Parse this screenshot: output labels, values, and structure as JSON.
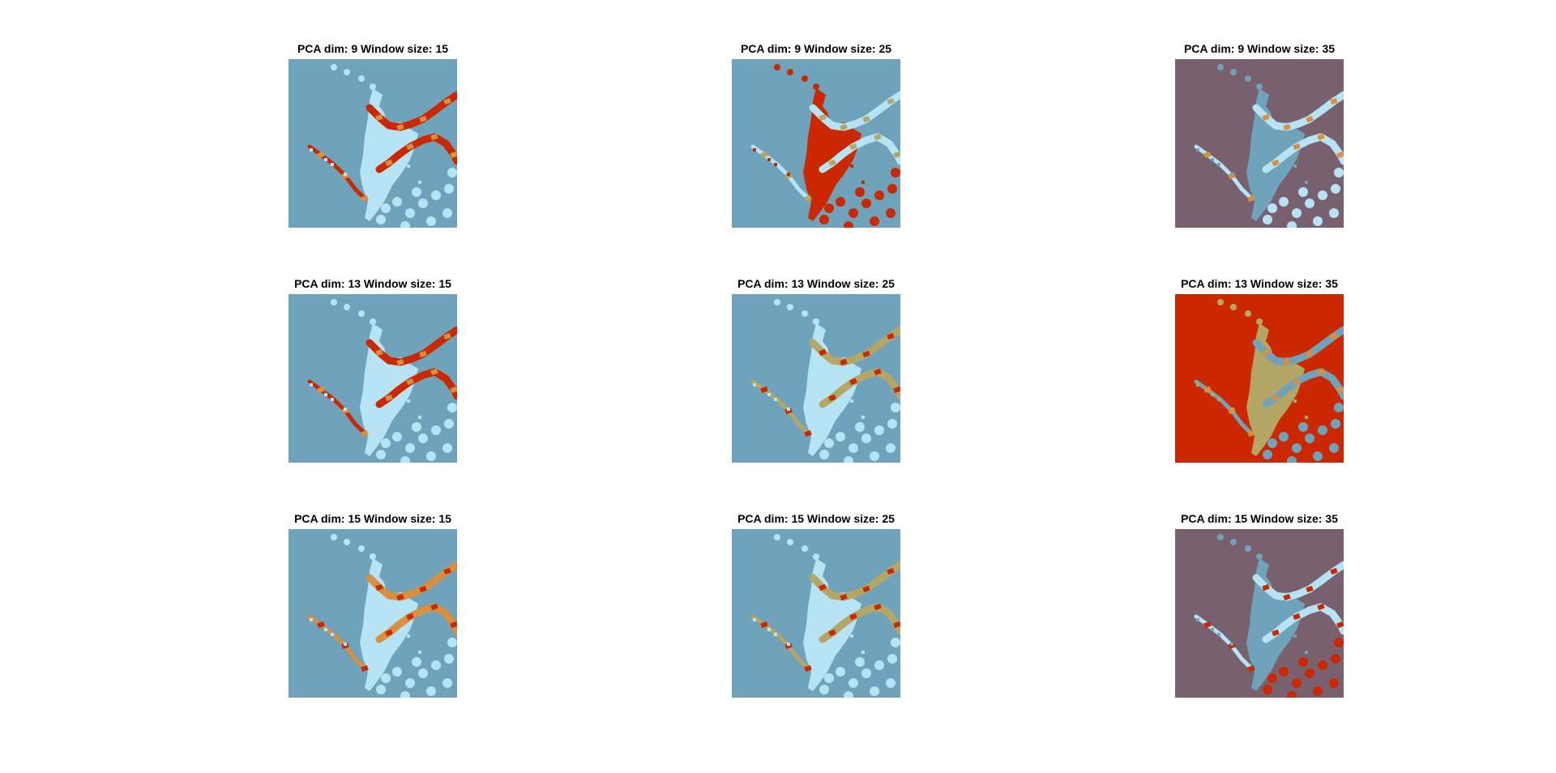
{
  "figure": {
    "background": "#ffffff"
  },
  "chart_data": {
    "type": "heatmap",
    "description": "3x3 grid of cluster-label maps (segmentation results)",
    "rows_param": "PCA dim",
    "cols_param": "Window size",
    "pca_dims": [
      9,
      13,
      15
    ],
    "window_sizes": [
      15,
      25,
      35
    ],
    "palette": {
      "steel_blue": "#6ea3bb",
      "light_blue": "#b6e4f5",
      "red": "#cb2800",
      "orange": "#d8903e",
      "khaki": "#b4a765",
      "mauve": "#79606f"
    },
    "panels": [
      {
        "title": "PCA dim: 9 Window size: 15",
        "pca_dim": 9,
        "window_size": 15,
        "background": "steel_blue",
        "body": "light_blue",
        "ridge": "red",
        "accent": "orange",
        "spots": "light_blue"
      },
      {
        "title": "PCA dim: 9 Window size: 25",
        "pca_dim": 9,
        "window_size": 25,
        "background": "steel_blue",
        "body": "red",
        "ridge": "light_blue",
        "accent": "khaki",
        "spots": "red"
      },
      {
        "title": "PCA dim: 9 Window size: 35",
        "pca_dim": 9,
        "window_size": 35,
        "background": "mauve",
        "body": "steel_blue",
        "ridge": "light_blue",
        "accent": "orange",
        "spots": "light_blue"
      },
      {
        "title": "PCA dim: 13 Window size: 15",
        "pca_dim": 13,
        "window_size": 15,
        "background": "steel_blue",
        "body": "light_blue",
        "ridge": "red",
        "accent": "orange",
        "spots": "light_blue"
      },
      {
        "title": "PCA dim: 13 Window size: 25",
        "pca_dim": 13,
        "window_size": 25,
        "background": "steel_blue",
        "body": "light_blue",
        "ridge": "khaki",
        "accent": "red",
        "spots": "light_blue"
      },
      {
        "title": "PCA dim: 13 Window size: 35",
        "pca_dim": 13,
        "window_size": 35,
        "background": "red",
        "body": "khaki",
        "ridge": "steel_blue",
        "accent": "orange",
        "spots": "steel_blue"
      },
      {
        "title": "PCA dim: 15 Window size: 15",
        "pca_dim": 15,
        "window_size": 15,
        "background": "steel_blue",
        "body": "light_blue",
        "ridge": "orange",
        "accent": "red",
        "spots": "light_blue"
      },
      {
        "title": "PCA dim: 15 Window size: 25",
        "pca_dim": 15,
        "window_size": 25,
        "background": "steel_blue",
        "body": "light_blue",
        "ridge": "khaki",
        "accent": "red",
        "spots": "light_blue"
      },
      {
        "title": "PCA dim: 15 Window size: 35",
        "pca_dim": 15,
        "window_size": 35,
        "background": "mauve",
        "body": "steel_blue",
        "ridge": "light_blue",
        "accent": "red",
        "spots": "red"
      }
    ]
  }
}
